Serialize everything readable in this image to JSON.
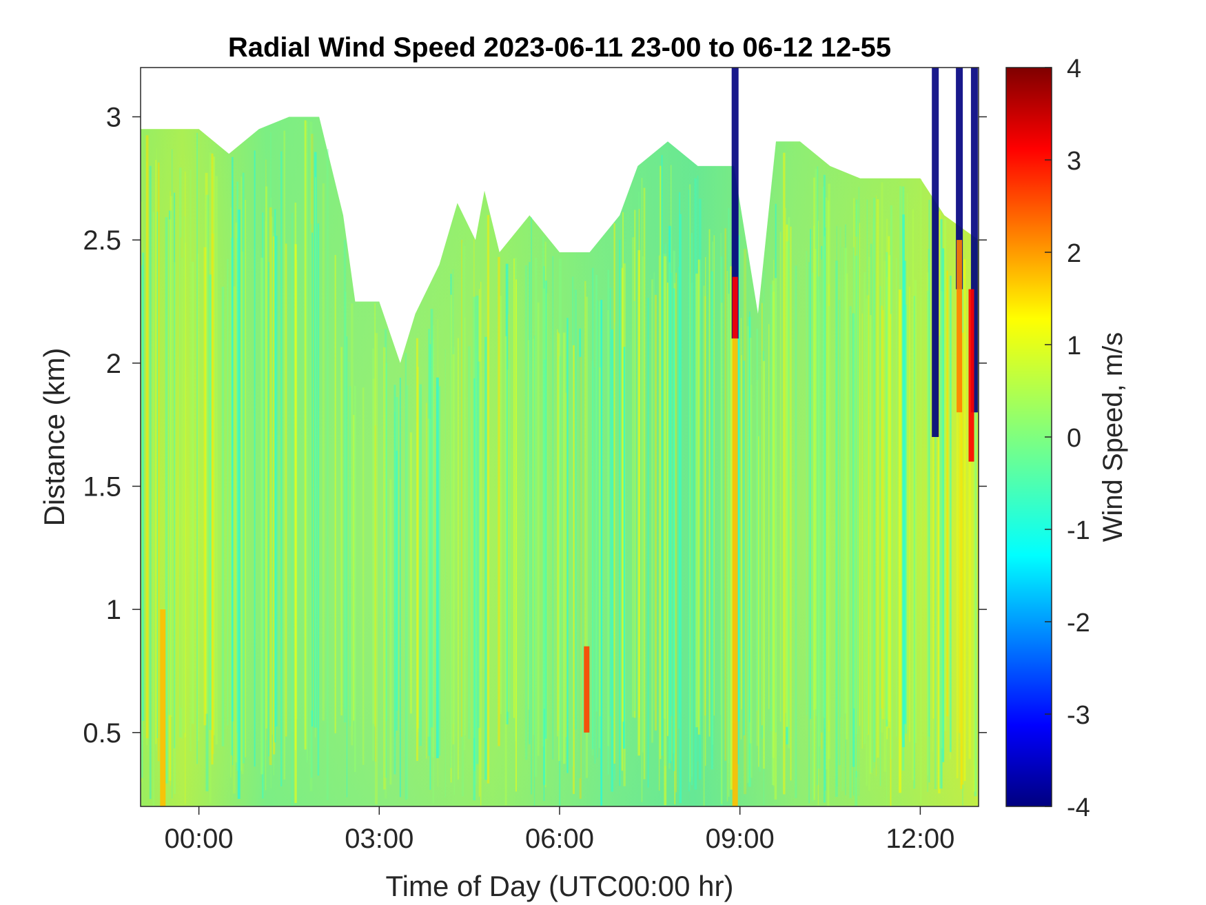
{
  "chart_data": {
    "type": "heatmap",
    "title": "Radial Wind Speed 2023-06-11 23-00 to 06-12 12-55",
    "xlabel": "Time of Day (UTC00:00 hr)",
    "ylabel": "Distance (km)",
    "x_range_hours": [
      -0.97,
      12.97
    ],
    "y_range_km": [
      0.2,
      3.2
    ],
    "x_ticks": [
      {
        "value": 0,
        "label": "00:00"
      },
      {
        "value": 3,
        "label": "03:00"
      },
      {
        "value": 6,
        "label": "06:00"
      },
      {
        "value": 9,
        "label": "09:00"
      },
      {
        "value": 12,
        "label": "12:00"
      }
    ],
    "y_ticks": [
      {
        "value": 0.5,
        "label": "0.5"
      },
      {
        "value": 1,
        "label": "1"
      },
      {
        "value": 1.5,
        "label": "1.5"
      },
      {
        "value": 2,
        "label": "2"
      },
      {
        "value": 2.5,
        "label": "2.5"
      },
      {
        "value": 3,
        "label": "3"
      }
    ],
    "colorbar": {
      "label": "Wind Speed, m/s",
      "range": [
        -4,
        4
      ],
      "ticks": [
        "-4",
        "-3",
        "-2",
        "-1",
        "0",
        "1",
        "2",
        "3",
        "4"
      ],
      "colormap": "jet"
    },
    "data_ceiling_km": [
      [
        -0.97,
        2.95
      ],
      [
        -0.5,
        2.95
      ],
      [
        0,
        2.95
      ],
      [
        0.5,
        2.85
      ],
      [
        1,
        2.95
      ],
      [
        1.5,
        3.0
      ],
      [
        2,
        3.0
      ],
      [
        2.4,
        2.6
      ],
      [
        2.6,
        2.25
      ],
      [
        3.0,
        2.25
      ],
      [
        3.35,
        2.0
      ],
      [
        3.6,
        2.2
      ],
      [
        4.0,
        2.4
      ],
      [
        4.3,
        2.65
      ],
      [
        4.6,
        2.5
      ],
      [
        4.75,
        2.7
      ],
      [
        5.0,
        2.45
      ],
      [
        5.5,
        2.6
      ],
      [
        6.0,
        2.45
      ],
      [
        6.5,
        2.45
      ],
      [
        7.0,
        2.6
      ],
      [
        7.3,
        2.8
      ],
      [
        7.8,
        2.9
      ],
      [
        8.3,
        2.8
      ],
      [
        8.9,
        2.8
      ],
      [
        9.3,
        2.2
      ],
      [
        9.6,
        2.9
      ],
      [
        10.0,
        2.9
      ],
      [
        10.5,
        2.8
      ],
      [
        11.0,
        2.75
      ],
      [
        11.5,
        2.75
      ],
      [
        12.0,
        2.75
      ],
      [
        12.4,
        2.6
      ],
      [
        12.97,
        2.5
      ]
    ],
    "features": [
      {
        "x_hours": 8.92,
        "y_from_km": 2.1,
        "y_to_km": 3.2,
        "value_ms": -4
      },
      {
        "x_hours": 8.92,
        "y_from_km": 2.1,
        "y_to_km": 2.35,
        "value_ms": 3
      },
      {
        "x_hours": 8.92,
        "y_from_km": 0.2,
        "y_to_km": 2.1,
        "value_ms": 1.5
      },
      {
        "x_hours": 12.25,
        "y_from_km": 1.7,
        "y_to_km": 3.2,
        "value_ms": -4
      },
      {
        "x_hours": 12.65,
        "y_from_km": 2.3,
        "y_to_km": 3.2,
        "value_ms": -4
      },
      {
        "x_hours": 12.9,
        "y_from_km": 1.8,
        "y_to_km": 3.2,
        "value_ms": -4
      },
      {
        "x_hours": 12.85,
        "y_from_km": 1.6,
        "y_to_km": 2.3,
        "value_ms": 3
      },
      {
        "x_hours": 12.65,
        "y_from_km": 1.8,
        "y_to_km": 2.5,
        "value_ms": 2
      },
      {
        "x_hours": -0.6,
        "y_from_km": 0.2,
        "y_to_km": 1.0,
        "value_ms": 1.5
      },
      {
        "x_hours": 6.45,
        "y_from_km": 0.5,
        "y_to_km": 0.85,
        "value_ms": 2.5
      }
    ]
  }
}
